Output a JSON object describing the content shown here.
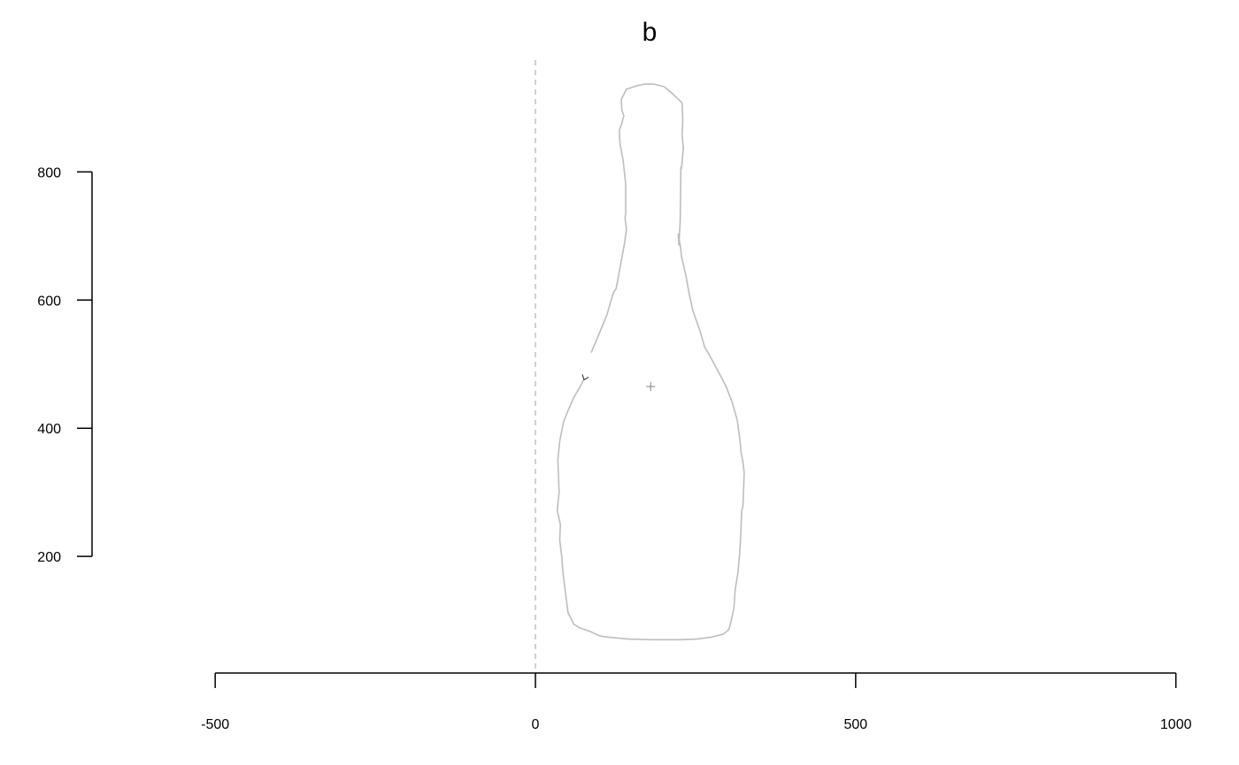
{
  "chart_data": {
    "type": "line",
    "title": "b",
    "xlabel": "",
    "ylabel": "",
    "xlim": [
      -500,
      1000
    ],
    "ylim": [
      0,
      1000
    ],
    "x_ticks": [
      -500,
      0,
      500,
      1000
    ],
    "y_ticks": [
      200,
      400,
      600,
      800
    ],
    "reference_line": {
      "x": 0,
      "style": "dashed",
      "color": "#c4c4c4"
    },
    "centroid": {
      "x": 180,
      "y": 465
    },
    "grid": false,
    "colors": {
      "outline": "#bdbdbd",
      "axes": "#000000",
      "centroid": "#8c8c8c"
    },
    "series": [
      {
        "values": [
          [
            87,
            518
          ],
          [
            99,
            546
          ],
          [
            112,
            578
          ],
          [
            117,
            596
          ],
          [
            122,
            612
          ],
          [
            126,
            618
          ],
          [
            134,
            661
          ],
          [
            139,
            688
          ],
          [
            142,
            710
          ],
          [
            140,
            728
          ],
          [
            141,
            736
          ],
          [
            141,
            781
          ],
          [
            137,
            818
          ],
          [
            132,
            845
          ],
          [
            131,
            865
          ],
          [
            135,
            876
          ],
          [
            138,
            888
          ],
          [
            135,
            896
          ],
          [
            134,
            913
          ],
          [
            142,
            929
          ],
          [
            160,
            935
          ],
          [
            170,
            937
          ],
          [
            185,
            937
          ],
          [
            201,
            933
          ],
          [
            214,
            922
          ],
          [
            229,
            908
          ],
          [
            230,
            881
          ],
          [
            229,
            857
          ],
          [
            231,
            837
          ],
          [
            228,
            805
          ],
          [
            227,
            807
          ],
          [
            226,
            724
          ],
          [
            224,
            686
          ],
          [
            223,
            703
          ],
          [
            227,
            679
          ],
          [
            228,
            668
          ],
          [
            235,
            638
          ],
          [
            240,
            610
          ],
          [
            246,
            583
          ],
          [
            257,
            552
          ],
          [
            264,
            527
          ],
          [
            270,
            517
          ],
          [
            282,
            495
          ],
          [
            297,
            467
          ],
          [
            307,
            441
          ],
          [
            315,
            413
          ],
          [
            319,
            384
          ],
          [
            321,
            363
          ],
          [
            324,
            347
          ],
          [
            326,
            331
          ],
          [
            325,
            303
          ],
          [
            324,
            279
          ],
          [
            322,
            270
          ],
          [
            321,
            242
          ],
          [
            319,
            206
          ],
          [
            316,
            173
          ],
          [
            312,
            149
          ],
          [
            310,
            120
          ],
          [
            306,
            101
          ],
          [
            302,
            86
          ],
          [
            294,
            79
          ],
          [
            275,
            74
          ],
          [
            252,
            71
          ],
          [
            228,
            70
          ],
          [
            180,
            70
          ],
          [
            145,
            71
          ],
          [
            113,
            74
          ],
          [
            100,
            76
          ],
          [
            85,
            83
          ],
          [
            70,
            88
          ],
          [
            60,
            94
          ],
          [
            51,
            112
          ],
          [
            46,
            150
          ],
          [
            43,
            175
          ],
          [
            41,
            200
          ],
          [
            38,
            225
          ],
          [
            39,
            250
          ],
          [
            34,
            272
          ],
          [
            37,
            300
          ],
          [
            35,
            350
          ],
          [
            38,
            380
          ],
          [
            44,
            410
          ],
          [
            52,
            430
          ],
          [
            60,
            448
          ],
          [
            71,
            467
          ],
          [
            76,
            477
          ]
        ]
      }
    ]
  }
}
